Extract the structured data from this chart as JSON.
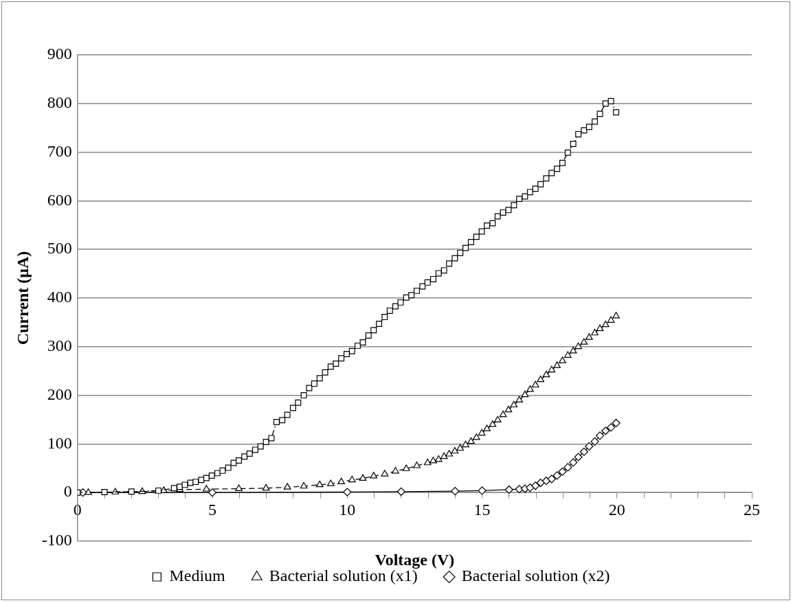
{
  "chart_data": {
    "type": "line",
    "xlabel": "Voltage (V)",
    "ylabel": "Current (µA)",
    "xlim": [
      0,
      25
    ],
    "xticks": [
      0,
      {
        "value": 1,
        "label": null
      },
      {
        "value": 2,
        "label": null
      },
      {
        "value": 3,
        "label": null
      },
      {
        "value": 4,
        "label": null
      },
      5,
      {
        "value": 6,
        "label": null
      },
      {
        "value": 7,
        "label": null
      },
      {
        "value": 8,
        "label": null
      },
      {
        "value": 9,
        "label": null
      },
      10,
      {
        "value": 11,
        "label": null
      },
      {
        "value": 12,
        "label": null
      },
      {
        "value": 13,
        "label": null
      },
      {
        "value": 14,
        "label": null
      },
      15,
      {
        "value": 16,
        "label": null
      },
      {
        "value": 17,
        "label": null
      },
      {
        "value": 18,
        "label": null
      },
      {
        "value": 19,
        "label": null
      },
      20,
      {
        "value": 21,
        "label": null
      },
      {
        "value": 22,
        "label": null
      },
      {
        "value": 23,
        "label": null
      },
      {
        "value": 24,
        "label": null
      },
      25
    ],
    "ylim": [
      -100,
      900
    ],
    "yticks": [
      -100,
      0,
      100,
      200,
      300,
      400,
      500,
      600,
      700,
      800,
      900
    ],
    "grid": "y",
    "legend": "bottom",
    "series": [
      {
        "name": "Medium",
        "color": "#000000",
        "marker": "square",
        "line_style": "dotted",
        "x": [
          0,
          1,
          2,
          3,
          3.58,
          3.79,
          3.98,
          4.19,
          4.38,
          4.59,
          4.78,
          4.98,
          5.19,
          5.38,
          5.59,
          5.79,
          5.98,
          6.19,
          6.38,
          6.59,
          6.79,
          6.99,
          7.19,
          7.38,
          7.59,
          7.78,
          7.99,
          8.18,
          8.39,
          8.59,
          8.78,
          8.98,
          9.18,
          9.39,
          9.58,
          9.78,
          9.98,
          10.18,
          10.39,
          10.58,
          10.79,
          10.98,
          11.18,
          11.39,
          11.58,
          11.79,
          11.98,
          12.19,
          12.38,
          12.58,
          12.79,
          12.98,
          13.19,
          13.39,
          13.59,
          13.78,
          13.99,
          14.19,
          14.39,
          14.59,
          14.79,
          14.99,
          15.18,
          15.39,
          15.58,
          15.78,
          15.98,
          16.18,
          16.38,
          16.59,
          16.78,
          16.98,
          17.17,
          17.38,
          17.58,
          17.78,
          17.98,
          18.18,
          18.38,
          18.57,
          18.78,
          18.97,
          19.18,
          19.37,
          19.58,
          19.78,
          19.97
        ],
        "values": [
          0,
          1,
          2,
          4,
          9,
          12,
          16,
          20,
          22,
          26,
          30,
          35,
          40,
          45,
          51,
          61,
          66,
          74,
          80,
          88,
          95,
          104,
          112,
          145,
          149,
          160,
          174,
          185,
          200,
          215,
          224,
          235,
          247,
          259,
          265,
          276,
          285,
          291,
          302,
          309,
          323,
          334,
          347,
          361,
          374,
          383,
          391,
          401,
          406,
          415,
          424,
          432,
          439,
          451,
          457,
          471,
          482,
          493,
          503,
          515,
          526,
          537,
          549,
          554,
          568,
          576,
          581,
          591,
          604,
          609,
          618,
          625,
          634,
          646,
          657,
          666,
          678,
          699,
          717,
          737,
          745,
          752,
          763,
          779,
          800,
          805,
          782
        ]
      },
      {
        "name": "Bacterial solution (x1)",
        "color": "#000000",
        "marker": "triangle",
        "line_style": "dashed",
        "x": [
          0.4,
          1.4,
          2.4,
          3.2,
          3.79,
          4.78,
          5.98,
          6.99,
          7.78,
          8.39,
          8.98,
          9.39,
          9.78,
          10.18,
          10.58,
          10.98,
          11.39,
          11.79,
          12.19,
          12.58,
          12.98,
          13.19,
          13.39,
          13.59,
          13.78,
          13.99,
          14.19,
          14.39,
          14.59,
          14.79,
          14.99,
          15.18,
          15.39,
          15.58,
          15.78,
          15.98,
          16.18,
          16.38,
          16.59,
          16.78,
          16.98,
          17.17,
          17.38,
          17.58,
          17.78,
          17.98,
          18.18,
          18.38,
          18.57,
          18.78,
          18.97,
          19.18,
          19.37,
          19.58,
          19.78,
          19.97
        ],
        "values": [
          0,
          1,
          2,
          4,
          6,
          7,
          8,
          9,
          11,
          13,
          16,
          18,
          22,
          26,
          29,
          34,
          38,
          44,
          49,
          55,
          61,
          65,
          68,
          74,
          79,
          85,
          91,
          98,
          105,
          113,
          122,
          131,
          140,
          149,
          160,
          170,
          180,
          190,
          201,
          212,
          221,
          232,
          242,
          252,
          261,
          271,
          282,
          291,
          300,
          309,
          319,
          328,
          337,
          345,
          354,
          363
        ]
      },
      {
        "name": "Bacterial solution (x2)",
        "color": "#000000",
        "marker": "diamond",
        "line_style": "solid",
        "x": [
          0.2,
          5,
          10,
          12,
          14,
          15,
          16,
          16.38,
          16.59,
          16.78,
          16.98,
          17.17,
          17.38,
          17.58,
          17.78,
          17.98,
          18.18,
          18.38,
          18.57,
          18.78,
          18.97,
          19.18,
          19.37,
          19.58,
          19.78,
          19.97
        ],
        "values": [
          0,
          0,
          1,
          2,
          3,
          4,
          6,
          7,
          8,
          10,
          14,
          20,
          24,
          28,
          35,
          43,
          52,
          62,
          73,
          84,
          95,
          105,
          117,
          127,
          134,
          143
        ]
      }
    ]
  }
}
